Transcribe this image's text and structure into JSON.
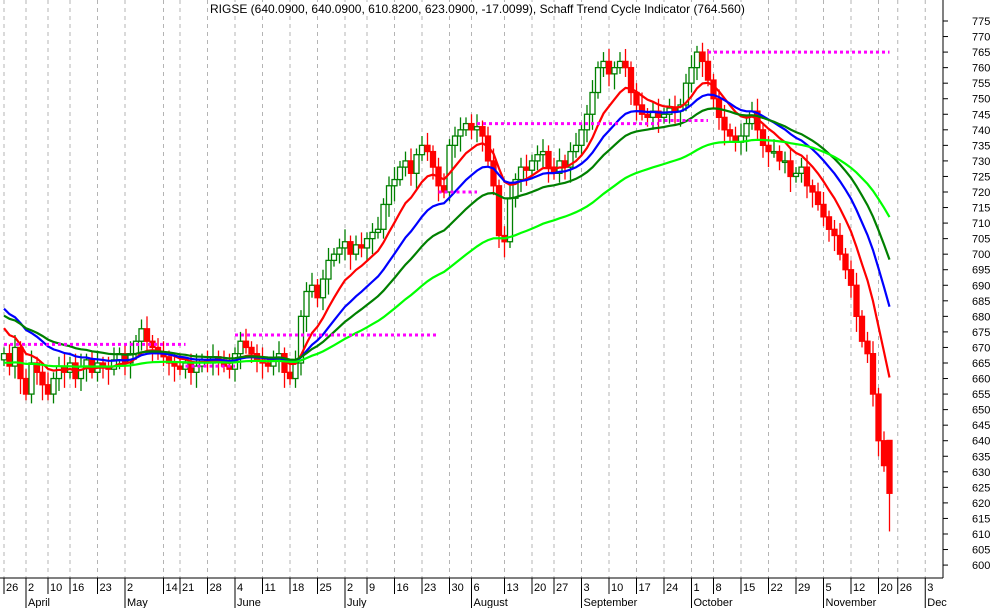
{
  "chart_data": {
    "type": "candlestick",
    "title": "RIGSE (640.0900, 640.0900, 610.8200, 623.0900, -17.0099), Schaff Trend Cycle Indicator (764.560)",
    "ylim": [
      597,
      780
    ],
    "y_ticks": [
      600,
      605,
      610,
      615,
      620,
      625,
      630,
      635,
      640,
      645,
      650,
      655,
      660,
      665,
      670,
      675,
      680,
      685,
      690,
      695,
      700,
      705,
      710,
      715,
      720,
      725,
      730,
      735,
      740,
      745,
      750,
      755,
      760,
      765,
      770,
      775
    ],
    "x_ticks": [
      {
        "label": "26",
        "i": 0
      },
      {
        "label": "2",
        "i": 4
      },
      {
        "label": "10",
        "i": 8
      },
      {
        "label": "16",
        "i": 12
      },
      {
        "label": "23",
        "i": 17
      },
      {
        "label": "2",
        "i": 22
      },
      {
        "label": "14",
        "i": 29
      },
      {
        "label": "21",
        "i": 32
      },
      {
        "label": "28",
        "i": 37
      },
      {
        "label": "4",
        "i": 42
      },
      {
        "label": "11",
        "i": 47
      },
      {
        "label": "18",
        "i": 52
      },
      {
        "label": "25",
        "i": 57
      },
      {
        "label": "2",
        "i": 62
      },
      {
        "label": "9",
        "i": 66
      },
      {
        "label": "16",
        "i": 71
      },
      {
        "label": "23",
        "i": 76
      },
      {
        "label": "30",
        "i": 81
      },
      {
        "label": "6",
        "i": 85
      },
      {
        "label": "13",
        "i": 91
      },
      {
        "label": "20",
        "i": 96
      },
      {
        "label": "27",
        "i": 100
      },
      {
        "label": "3",
        "i": 105
      },
      {
        "label": "10",
        "i": 110
      },
      {
        "label": "17",
        "i": 115
      },
      {
        "label": "24",
        "i": 120
      },
      {
        "label": "1",
        "i": 125
      },
      {
        "label": "8",
        "i": 129
      },
      {
        "label": "15",
        "i": 134
      },
      {
        "label": "22",
        "i": 139
      },
      {
        "label": "29",
        "i": 144
      },
      {
        "label": "5",
        "i": 149
      },
      {
        "label": "12",
        "i": 154
      },
      {
        "label": "20",
        "i": 159
      },
      {
        "label": "26",
        "i": 162.5
      },
      {
        "label": "3",
        "i": 167.5
      }
    ],
    "months": [
      {
        "label": "April",
        "i": 4
      },
      {
        "label": "May",
        "i": 22
      },
      {
        "label": "June",
        "i": 42
      },
      {
        "label": "July",
        "i": 62
      },
      {
        "label": "August",
        "i": 85
      },
      {
        "label": "September",
        "i": 105
      },
      {
        "label": "October",
        "i": 125
      },
      {
        "label": "November",
        "i": 149
      },
      {
        "label": "Dec",
        "i": 167.5
      }
    ],
    "closes": [
      668,
      664,
      670,
      660,
      655,
      665,
      662,
      658,
      655,
      660,
      664,
      662,
      665,
      660,
      664,
      666,
      662,
      665,
      664,
      663,
      666,
      668,
      665,
      668,
      672,
      676,
      672,
      670,
      668,
      667,
      665,
      664,
      663,
      665,
      662,
      664,
      666,
      665,
      667,
      666,
      664,
      663,
      668,
      672,
      670,
      668,
      666,
      665,
      664,
      666,
      668,
      662,
      660,
      665,
      680,
      688,
      690,
      686,
      692,
      698,
      700,
      702,
      704,
      700,
      703,
      702,
      705,
      707,
      708,
      716,
      722,
      724,
      728,
      730,
      726,
      732,
      735,
      733,
      728,
      722,
      720,
      735,
      738,
      740,
      742,
      740,
      741,
      738,
      730,
      722,
      706,
      704,
      718,
      724,
      728,
      727,
      730,
      732,
      733,
      728,
      726,
      730,
      728,
      733,
      735,
      740,
      745,
      752,
      760,
      762,
      758,
      760,
      762,
      760,
      752,
      748,
      745,
      744,
      746,
      744,
      745,
      747,
      746,
      748,
      755,
      760,
      765,
      762,
      756,
      750,
      744,
      740,
      738,
      736,
      738,
      742,
      746,
      740,
      735,
      733,
      733,
      730,
      730,
      725,
      726,
      728,
      722,
      720,
      716,
      712,
      708,
      706,
      700,
      695,
      690,
      680,
      672,
      668,
      655,
      640,
      632,
      623
    ],
    "last_bar": {
      "open": 640.09,
      "high": 640.09,
      "low": 610.82,
      "close": 623.09,
      "change": -17.0099
    },
    "indicator_value": 764.56,
    "moving_averages": [
      {
        "color": "#ff0000"
      },
      {
        "color": "#0000ff"
      },
      {
        "color": "#008000"
      },
      {
        "color": "#00ff00"
      }
    ],
    "levels": [
      {
        "price": 671,
        "from": 0,
        "to": 33
      },
      {
        "price": 664,
        "from": 33,
        "to": 42
      },
      {
        "price": 674,
        "from": 42,
        "to": 79
      },
      {
        "price": 720,
        "from": 79,
        "to": 86
      },
      {
        "price": 742,
        "from": 86,
        "to": 119
      },
      {
        "price": 743,
        "from": 119,
        "to": 128
      },
      {
        "price": 765,
        "from": 128,
        "to": 161
      }
    ],
    "colors": {
      "up": "#008000",
      "down": "#ff0000",
      "level": "#ff00ff",
      "grid": "#b4b4b4"
    }
  }
}
